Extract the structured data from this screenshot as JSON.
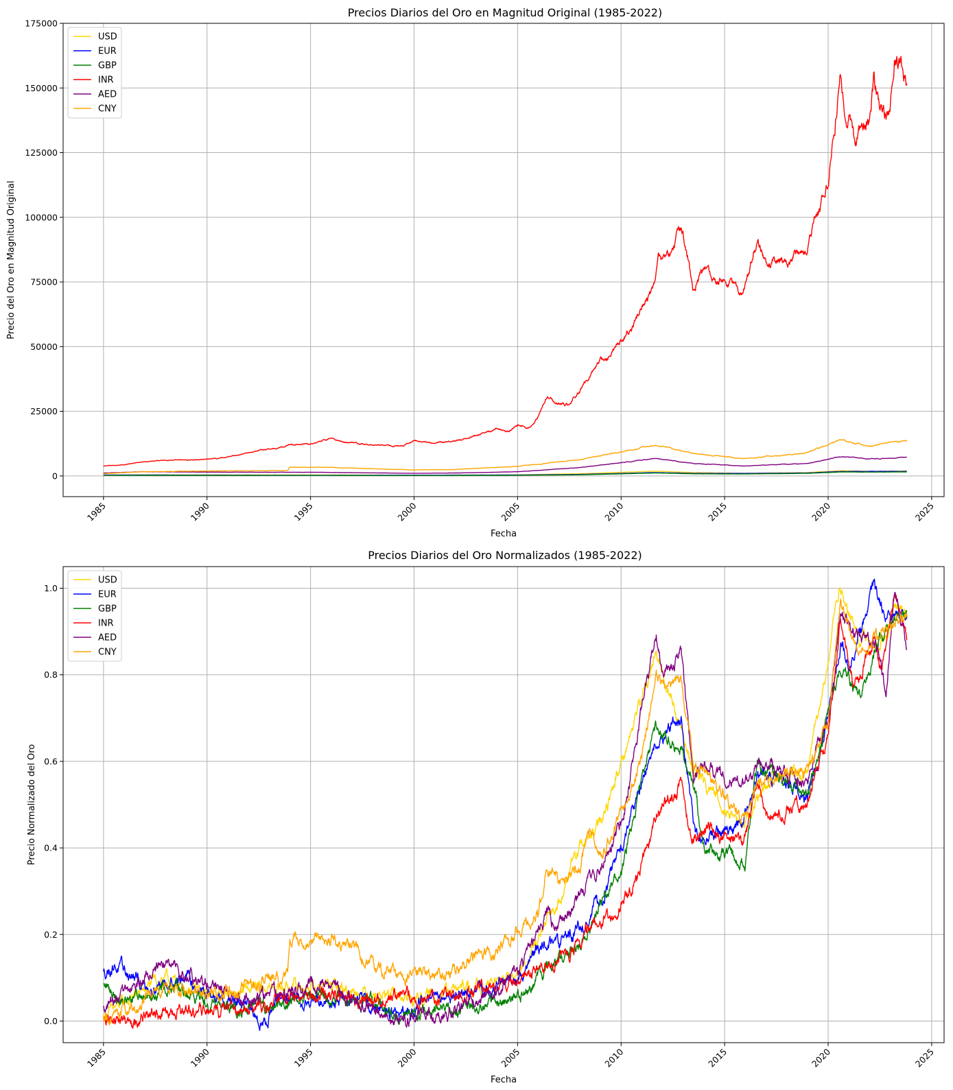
{
  "chart_data": [
    {
      "type": "line",
      "title": "Precios Diarios del Oro en Magnitud Original (1985-2022)",
      "xlabel": "Fecha",
      "ylabel": "Precio del Oro en Magnitud Original",
      "xlim": [
        1983.05,
        2025.6
      ],
      "ylim": [
        -8000,
        175000
      ],
      "xticks": [
        1985,
        1990,
        1995,
        2000,
        2005,
        2010,
        2015,
        2020,
        2025
      ],
      "xtick_labels": [
        "1985",
        "1990",
        "1995",
        "2000",
        "2005",
        "2010",
        "2015",
        "2020",
        "2025"
      ],
      "yticks": [
        0,
        25000,
        50000,
        75000,
        100000,
        125000,
        150000,
        175000
      ],
      "ytick_labels": [
        "0",
        "25000",
        "50000",
        "75000",
        "100000",
        "125000",
        "150000",
        "175000"
      ],
      "grid": true,
      "legend": "top-left",
      "series": [
        {
          "name": "USD",
          "color": "#FFD700",
          "x": [
            1985,
            1987,
            1990,
            1995,
            2000,
            2002,
            2005,
            2008,
            2011.7,
            2013.5,
            2015.9,
            2019,
            2020.6,
            2022,
            2023.8
          ],
          "y": [
            305,
            447,
            400,
            387,
            280,
            310,
            445,
            870,
            1850,
            1300,
            1060,
            1300,
            2050,
            1800,
            1950
          ]
        },
        {
          "name": "EUR",
          "color": "#0000FF",
          "x": [
            1985,
            1990,
            1995,
            2000,
            2002,
            2005,
            2008,
            2011.7,
            2013.5,
            2015.9,
            2019,
            2020.6,
            2022,
            2023.8
          ],
          "y": [
            380,
            320,
            300,
            300,
            320,
            360,
            590,
            1300,
            1000,
            970,
            1150,
            1750,
            1750,
            1800
          ]
        },
        {
          "name": "GBP",
          "color": "#008000",
          "x": [
            1985,
            1990,
            1995,
            2000,
            2002,
            2005,
            2008,
            2011.7,
            2013.5,
            2015.9,
            2019,
            2020.6,
            2022,
            2023.8
          ],
          "y": [
            240,
            220,
            250,
            180,
            210,
            240,
            440,
            1150,
            820,
            760,
            1000,
            1500,
            1500,
            1550
          ]
        },
        {
          "name": "INR",
          "color": "#FF0000",
          "x": [
            1985,
            1986,
            1986.6,
            1988,
            1989.5,
            1990,
            1990.5,
            1991.6,
            1992.5,
            1993.5,
            1994,
            1995,
            1996,
            1996.5,
            1998,
            1999.5,
            2000,
            2001,
            2002,
            2003,
            2004,
            2004.5,
            2005,
            2005.6,
            2006,
            2006.4,
            2006.8,
            2007.5,
            2008,
            2008.6,
            2009,
            2009.5,
            2010,
            2010.5,
            2011,
            2011.6,
            2011.8,
            2012,
            2012.5,
            2012.9,
            2013.3,
            2013.5,
            2014,
            2014.5,
            2015,
            2015.5,
            2015.9,
            2016.4,
            2016.6,
            2017,
            2017.5,
            2018,
            2018.5,
            2019,
            2019.4,
            2019.7,
            2020,
            2020.2,
            2020.6,
            2020.9,
            2021,
            2021.3,
            2021.6,
            2022,
            2022.2,
            2022.6,
            2023,
            2023.2,
            2023.5,
            2023.8
          ],
          "y": [
            3800,
            4300,
            5300,
            6100,
            6200,
            6600,
            6800,
            8200,
            9800,
            10800,
            12200,
            12300,
            14500,
            13300,
            12000,
            11500,
            13800,
            12800,
            13500,
            15600,
            18300,
            17000,
            19500,
            18500,
            23000,
            31000,
            28000,
            27500,
            33000,
            40000,
            45000,
            47000,
            52000,
            57000,
            65000,
            72000,
            85000,
            84000,
            89000,
            96000,
            82000,
            72000,
            80000,
            75000,
            76000,
            74000,
            70000,
            86000,
            91000,
            81000,
            84000,
            82000,
            88000,
            89000,
            100000,
            107000,
            112000,
            128000,
            154000,
            135000,
            140000,
            128000,
            132000,
            136000,
            152000,
            140000,
            140000,
            160000,
            160000,
            151000
          ]
        },
        {
          "name": "AED",
          "color": "#800080",
          "x": [
            1985,
            1987,
            1990,
            1995,
            2000,
            2002,
            2005,
            2008,
            2011.7,
            2013.5,
            2015.9,
            2019,
            2020.6,
            2022,
            2023.8
          ],
          "y": [
            1120,
            1640,
            1470,
            1420,
            1030,
            1140,
            1630,
            3200,
            6800,
            4800,
            3900,
            4800,
            7500,
            6600,
            7100
          ]
        },
        {
          "name": "CNY",
          "color": "#FFA500",
          "x": [
            1985,
            1987,
            1990,
            1993.9,
            1994,
            1996,
            2000,
            2002,
            2005,
            2008,
            2011.7,
            2013.5,
            2015.9,
            2019,
            2020.6,
            2022,
            2023.8
          ],
          "y": [
            900,
            1650,
            1900,
            2100,
            3400,
            3300,
            2300,
            2500,
            3700,
            6300,
            12000,
            8600,
            6700,
            8900,
            14000,
            11500,
            13800
          ]
        }
      ]
    },
    {
      "type": "line",
      "title": "Precios Diarios del Oro Normalizados (1985-2022)",
      "xlabel": "Fecha",
      "ylabel": "Precio Normalizado del Oro",
      "xlim": [
        1983.05,
        2025.6
      ],
      "ylim": [
        -0.05,
        1.05
      ],
      "xticks": [
        1985,
        1990,
        1995,
        2000,
        2005,
        2010,
        2015,
        2020,
        2025
      ],
      "xtick_labels": [
        "1985",
        "1990",
        "1995",
        "2000",
        "2005",
        "2010",
        "2015",
        "2020",
        "2025"
      ],
      "yticks": [
        0.0,
        0.2,
        0.4,
        0.6,
        0.8,
        1.0
      ],
      "ytick_labels": [
        "0.0",
        "0.2",
        "0.4",
        "0.6",
        "0.8",
        "1.0"
      ],
      "grid": true,
      "legend": "top-left",
      "series": [
        {
          "name": "USD",
          "color": "#FFD700",
          "x": [
            1985,
            1987.8,
            1990,
            1993.9,
            1996,
            2000,
            2003,
            2005,
            2006.4,
            2008,
            2009,
            2011.7,
            2013.5,
            2015.9,
            2017,
            2019,
            2020.6,
            2021.5,
            2022.5,
            2023.2,
            2023.8
          ],
          "y": [
            0.01,
            0.1,
            0.06,
            0.08,
            0.08,
            0.05,
            0.08,
            0.1,
            0.22,
            0.4,
            0.45,
            0.85,
            0.58,
            0.45,
            0.55,
            0.58,
            1.0,
            0.88,
            0.86,
            0.95,
            0.95
          ]
        },
        {
          "name": "EUR",
          "color": "#0000FF",
          "x": [
            1985,
            1985.5,
            1987,
            1989,
            1990,
            1991.5,
            1992.8,
            1993.5,
            1995,
            1997,
            1999.6,
            2000.3,
            2002,
            2004,
            2005,
            2006,
            2007,
            2008,
            2009,
            2010,
            2011.7,
            2012.9,
            2013.6,
            2015,
            2015.9,
            2016.6,
            2018,
            2019,
            2019.5,
            2020.6,
            2021,
            2022.2,
            2023,
            2023.8
          ],
          "y": [
            0.11,
            0.13,
            0.08,
            0.1,
            0.06,
            0.04,
            0.0,
            0.05,
            0.05,
            0.05,
            0.01,
            0.05,
            0.06,
            0.08,
            0.1,
            0.17,
            0.18,
            0.22,
            0.28,
            0.4,
            0.65,
            0.7,
            0.42,
            0.44,
            0.45,
            0.57,
            0.55,
            0.52,
            0.6,
            0.87,
            0.82,
            1.0,
            0.92,
            0.93
          ]
        },
        {
          "name": "GBP",
          "color": "#008000",
          "x": [
            1985,
            1986,
            1988,
            1990,
            1991.5,
            1993,
            1995,
            1997,
            1999.6,
            2001,
            2003,
            2005,
            2006.5,
            2008,
            2009,
            2010,
            2011.7,
            2012.9,
            2013.5,
            2014,
            2015.2,
            2016,
            2016.6,
            2018,
            2019,
            2019.7,
            2020.6,
            2021.5,
            2022.5,
            2023.2,
            2023.8
          ],
          "y": [
            0.08,
            0.05,
            0.08,
            0.05,
            0.03,
            0.03,
            0.06,
            0.05,
            0.01,
            0.02,
            0.04,
            0.05,
            0.12,
            0.18,
            0.28,
            0.35,
            0.68,
            0.62,
            0.55,
            0.4,
            0.38,
            0.37,
            0.6,
            0.55,
            0.52,
            0.65,
            0.82,
            0.75,
            0.88,
            0.93,
            0.93
          ]
        },
        {
          "name": "INR",
          "color": "#FF0000",
          "x": [
            1985,
            1986,
            1986.6,
            1988,
            1990,
            1992,
            1994,
            1996,
            1998,
            2000,
            2002,
            2004,
            2005,
            2006,
            2007.5,
            2008.6,
            2009.5,
            2010,
            2011,
            2011.8,
            2012.9,
            2013.4,
            2014,
            2015,
            2015.9,
            2016.6,
            2017,
            2018,
            2019,
            2019.4,
            2020,
            2020.6,
            2021.2,
            2021.6,
            2022.2,
            2022.6,
            2023.2,
            2023.8
          ],
          "y": [
            0.0,
            0.003,
            0.01,
            0.015,
            0.02,
            0.03,
            0.05,
            0.06,
            0.045,
            0.055,
            0.06,
            0.08,
            0.09,
            0.12,
            0.15,
            0.22,
            0.25,
            0.28,
            0.35,
            0.49,
            0.55,
            0.42,
            0.45,
            0.43,
            0.4,
            0.55,
            0.47,
            0.49,
            0.5,
            0.59,
            0.65,
            0.93,
            0.78,
            0.8,
            0.88,
            0.8,
            0.99,
            0.88
          ]
        },
        {
          "name": "AED",
          "color": "#800080",
          "x": [
            1985,
            1986,
            1987,
            1988,
            1989,
            1990,
            1992,
            1994,
            1995,
            1996,
            1997,
            1999.6,
            2000.5,
            2001.5,
            2003,
            2004,
            2005,
            2006.4,
            2007,
            2008,
            2009,
            2010,
            2011.7,
            2012,
            2012.9,
            2013.5,
            2014,
            2015,
            2015.9,
            2016.6,
            2017,
            2018,
            2019,
            2020,
            2020.6,
            2021.5,
            2022.3,
            2022.8,
            2023.2,
            2023.8
          ],
          "y": [
            0.03,
            0.06,
            0.1,
            0.13,
            0.1,
            0.08,
            0.05,
            0.07,
            0.08,
            0.08,
            0.05,
            0.0,
            0.02,
            0.01,
            0.05,
            0.08,
            0.1,
            0.25,
            0.22,
            0.3,
            0.35,
            0.45,
            0.9,
            0.8,
            0.85,
            0.55,
            0.6,
            0.55,
            0.55,
            0.58,
            0.6,
            0.57,
            0.55,
            0.7,
            0.95,
            0.88,
            0.88,
            0.76,
            1.0,
            0.86
          ]
        },
        {
          "name": "CNY",
          "color": "#FFA500",
          "x": [
            1985,
            1986,
            1987,
            1988,
            1989,
            1990,
            1991,
            1992,
            1993.9,
            1994,
            1995,
            1996,
            1997,
            1998,
            1999.6,
            2000,
            2001,
            2002,
            2003,
            2004,
            2005,
            2006,
            2006.4,
            2007,
            2008,
            2008.5,
            2009,
            2010,
            2011,
            2011.7,
            2012.9,
            2013.5,
            2015,
            2015.9,
            2016.6,
            2018,
            2019,
            2020,
            2020.6,
            2021.5,
            2022.5,
            2023.2,
            2023.8
          ],
          "y": [
            0.005,
            0.02,
            0.05,
            0.07,
            0.07,
            0.06,
            0.07,
            0.08,
            0.1,
            0.19,
            0.18,
            0.19,
            0.17,
            0.13,
            0.1,
            0.12,
            0.1,
            0.12,
            0.15,
            0.17,
            0.2,
            0.25,
            0.35,
            0.32,
            0.35,
            0.44,
            0.38,
            0.48,
            0.6,
            0.8,
            0.78,
            0.6,
            0.52,
            0.46,
            0.55,
            0.57,
            0.58,
            0.68,
            0.98,
            0.83,
            0.88,
            0.92,
            0.94
          ]
        }
      ]
    }
  ]
}
